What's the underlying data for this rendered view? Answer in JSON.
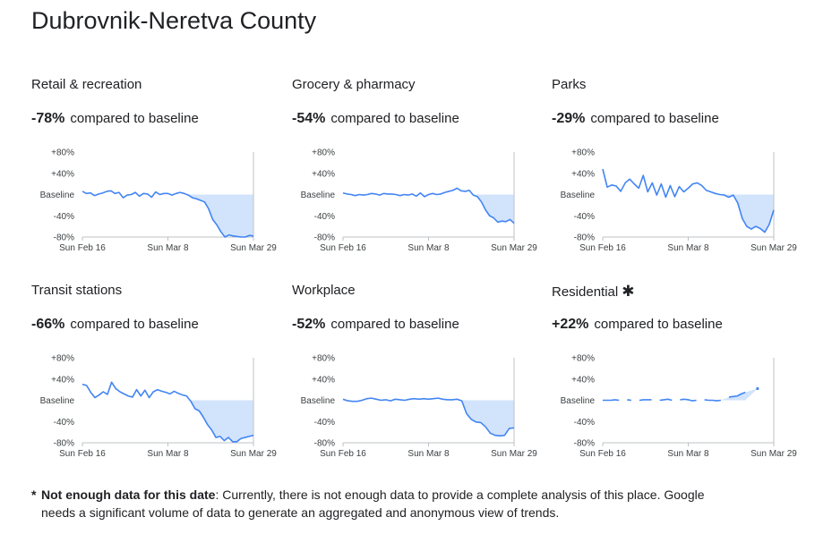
{
  "page": {
    "title": "Dubrovnik-Neretva County",
    "footnote": {
      "asterisk": "*",
      "bold": "Not enough data for this date",
      "text_line1": ": Currently, there is not enough data to provide a complete analysis of this place. Google",
      "text_line2": "needs a significant volume of data to generate an aggregated and anonymous view of trends."
    }
  },
  "colors": {
    "line": "#4285f4",
    "fill": "#d2e3fc",
    "axis": "#bdc1c6",
    "text": "#202124"
  },
  "panels": [
    {
      "title": "Retail & recreation",
      "pct": "-78%",
      "suffix": "compared to baseline",
      "star": ""
    },
    {
      "title": "Grocery & pharmacy",
      "pct": "-54%",
      "suffix": "compared to baseline",
      "star": ""
    },
    {
      "title": "Parks",
      "pct": "-29%",
      "suffix": "compared to baseline",
      "star": ""
    },
    {
      "title": "Transit stations",
      "pct": "-66%",
      "suffix": "compared to baseline",
      "star": ""
    },
    {
      "title": "Workplace",
      "pct": "-52%",
      "suffix": "compared to baseline",
      "star": ""
    },
    {
      "title": "Residential",
      "pct": "+22%",
      "suffix": "compared to baseline",
      "star": "✱"
    }
  ],
  "chart_data": [
    {
      "type": "line",
      "title": "Retail & recreation",
      "ylim": [
        -80,
        80
      ],
      "yticks": [
        "+80%",
        "+40%",
        "Baseline",
        "-40%",
        "-80%"
      ],
      "xticks": [
        "Sun Feb 16",
        "Sun Mar 8",
        "Sun Mar 29"
      ],
      "x_range": [
        "Feb 15",
        "Mar 29"
      ],
      "values": [
        6,
        2,
        3,
        -2,
        1,
        3,
        6,
        7,
        2,
        4,
        -6,
        -1,
        0,
        4,
        -3,
        2,
        1,
        -5,
        5,
        0,
        2,
        2,
        -1,
        2,
        4,
        2,
        -1,
        -6,
        -8,
        -11,
        -14,
        -27,
        -47,
        -57,
        -70,
        -80,
        -76,
        -78,
        -79,
        -80,
        -80,
        -77,
        -78
      ],
      "fill_baseline": true
    },
    {
      "type": "line",
      "title": "Grocery & pharmacy",
      "ylim": [
        -80,
        80
      ],
      "yticks": [
        "+80%",
        "+40%",
        "Baseline",
        "-40%",
        "-80%"
      ],
      "xticks": [
        "Sun Feb 16",
        "Sun Mar 8",
        "Sun Mar 29"
      ],
      "x_range": [
        "Feb 15",
        "Mar 29"
      ],
      "values": [
        3,
        1,
        0,
        -2,
        0,
        -1,
        0,
        2,
        1,
        -1,
        2,
        1,
        1,
        0,
        -2,
        0,
        -1,
        1,
        -3,
        3,
        -4,
        0,
        2,
        0,
        1,
        4,
        6,
        8,
        12,
        7,
        6,
        8,
        -1,
        -4,
        -14,
        -29,
        -40,
        -44,
        -52,
        -50,
        -51,
        -47,
        -54
      ],
      "fill_baseline": true
    },
    {
      "type": "line",
      "title": "Parks",
      "ylim": [
        -80,
        80
      ],
      "yticks": [
        "+80%",
        "+40%",
        "Baseline",
        "-40%",
        "-80%"
      ],
      "xticks": [
        "Sun Feb 16",
        "Sun Mar 8",
        "Sun Mar 29"
      ],
      "x_range": [
        "Feb 15",
        "Mar 29"
      ],
      "values": [
        48,
        14,
        18,
        16,
        6,
        22,
        29,
        20,
        12,
        36,
        5,
        22,
        -1,
        20,
        -5,
        17,
        -4,
        15,
        5,
        12,
        20,
        22,
        17,
        8,
        5,
        2,
        0,
        -1,
        -5,
        -1,
        -16,
        -45,
        -60,
        -65,
        -60,
        -64,
        -71,
        -56,
        -29
      ],
      "fill_baseline": true
    },
    {
      "type": "line",
      "title": "Transit stations",
      "ylim": [
        -80,
        80
      ],
      "yticks": [
        "+80%",
        "+40%",
        "Baseline",
        "-40%",
        "-80%"
      ],
      "xticks": [
        "Sun Feb 16",
        "Sun Mar 8",
        "Sun Mar 29"
      ],
      "x_range": [
        "Feb 15",
        "Mar 29"
      ],
      "values": [
        30,
        28,
        15,
        5,
        10,
        16,
        11,
        34,
        22,
        16,
        12,
        8,
        6,
        20,
        8,
        19,
        5,
        16,
        20,
        17,
        15,
        12,
        17,
        13,
        10,
        8,
        -2,
        -16,
        -20,
        -32,
        -46,
        -56,
        -70,
        -68,
        -76,
        -70,
        -78,
        -78,
        -72,
        -70,
        -68,
        -66
      ],
      "fill_baseline": true
    },
    {
      "type": "line",
      "title": "Workplace",
      "ylim": [
        -80,
        80
      ],
      "yticks": [
        "+80%",
        "+40%",
        "Baseline",
        "-40%",
        "-80%"
      ],
      "xticks": [
        "Sun Feb 16",
        "Sun Mar 8",
        "Sun Mar 29"
      ],
      "x_range": [
        "Feb 15",
        "Mar 29"
      ],
      "values": [
        2,
        -1,
        -2,
        -2,
        0,
        3,
        4,
        2,
        0,
        1,
        -1,
        2,
        1,
        0,
        2,
        3,
        2,
        3,
        2,
        3,
        4,
        2,
        1,
        1,
        2,
        -1,
        -25,
        -36,
        -41,
        -42,
        -50,
        -62,
        -66,
        -67,
        -66,
        -53,
        -52
      ],
      "fill_baseline": true
    },
    {
      "type": "line",
      "title": "Residential",
      "ylim": [
        -80,
        80
      ],
      "yticks": [
        "+80%",
        "+40%",
        "Baseline",
        "-40%",
        "-80%"
      ],
      "xticks": [
        "Sun Feb 16",
        "Sun Mar 8",
        "Sun Mar 29"
      ],
      "x_range": [
        "Feb 15",
        "Mar 29"
      ],
      "values": [
        0,
        0,
        0,
        1,
        0,
        null,
        1,
        0,
        null,
        0,
        1,
        1,
        1,
        null,
        0,
        1,
        2,
        0,
        null,
        1,
        2,
        1,
        -1,
        0,
        null,
        1,
        0,
        0,
        -1,
        0,
        null,
        6,
        7,
        8,
        12,
        15,
        null,
        null,
        22,
        null,
        null,
        null,
        null
      ],
      "fill_baseline": true
    }
  ]
}
